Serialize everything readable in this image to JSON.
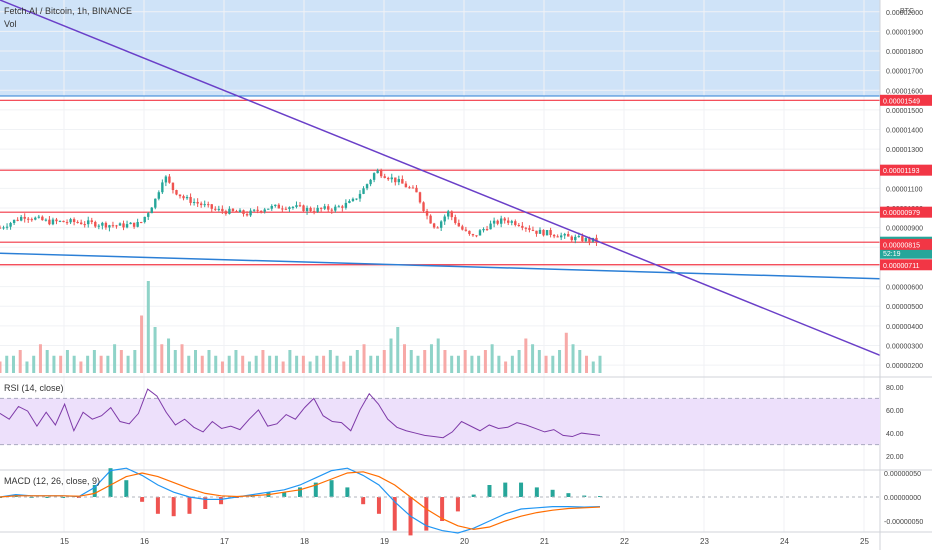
{
  "header": {
    "title": "Fetch.AI / Bitcoin, 1h, BINANCE",
    "vol_label": "Vol",
    "currency": "BTC"
  },
  "price_axis": {
    "ticks": [
      "0.00002000",
      "0.00001900",
      "0.00001800",
      "0.00001700",
      "0.00001600",
      "0.00001500",
      "0.00001400",
      "0.00001300",
      "0.00001200",
      "0.00001100",
      "0.00001000",
      "0.00000900",
      "0.00000800",
      "0.00000700",
      "0.00000600",
      "0.00000500",
      "0.00000400",
      "0.00000300",
      "0.00000200"
    ],
    "tick_values": [
      2e-05,
      1.9e-05,
      1.8e-05,
      1.7e-05,
      1.6e-05,
      1.5e-05,
      1.4e-05,
      1.3e-05,
      1.2e-05,
      1.1e-05,
      1e-05,
      9e-06,
      8e-06,
      7e-06,
      6e-06,
      5e-06,
      4e-06,
      3e-06,
      2e-06
    ]
  },
  "price_tags": [
    {
      "label": "0.00001549",
      "value": 1.549e-05,
      "color": "#f23645"
    },
    {
      "label": "0.00001193",
      "value": 1.193e-05,
      "color": "#f23645"
    },
    {
      "label": "0.00000979",
      "value": 9.79e-06,
      "color": "#f23645"
    },
    {
      "label": "0.00000826",
      "value": 8.26e-06,
      "color": "#26a69a",
      "sub": "52:19"
    },
    {
      "label": "0.00000815",
      "value": 8.15e-06,
      "color": "#f23645"
    },
    {
      "label": "0.00000711",
      "value": 7.11e-06,
      "color": "#f23645"
    }
  ],
  "horizontal_lines": [
    1.549e-05,
    1.193e-05,
    9.79e-06,
    8.26e-06,
    7.11e-06
  ],
  "trendlines": [
    {
      "name": "descending-trendline",
      "color": "#6a3fc8",
      "from": [
        14.2,
        2.06e-05
      ],
      "to": [
        25.2,
        2.5e-06
      ]
    },
    {
      "name": "support-trendline",
      "color": "#2b7fd6",
      "from": [
        14.2,
        7.7e-06
      ],
      "to": [
        25.2,
        6.4e-06
      ]
    }
  ],
  "rsi": {
    "label": "RSI (14, close)",
    "ticks": [
      "80.00",
      "60.00",
      "40.00",
      "20.00"
    ],
    "tick_values": [
      80,
      60,
      40,
      20
    ],
    "band": [
      30,
      70
    ]
  },
  "macd": {
    "label": "MACD (12, 26, close, 9)",
    "ticks": [
      "0.00000050",
      "0.00000000",
      "-0.00000050"
    ],
    "tick_values": [
      5e-07,
      0,
      -5e-07
    ]
  },
  "time_axis": {
    "labels": [
      "15",
      "16",
      "17",
      "18",
      "19",
      "20",
      "21",
      "22",
      "23",
      "24",
      "25"
    ],
    "values": [
      15,
      16,
      17,
      18,
      19,
      20,
      21,
      22,
      23,
      24,
      25
    ]
  },
  "chart_data": {
    "type": "candlestick",
    "title": "Fetch.AI / Bitcoin, 1h, BINANCE",
    "x_range": [
      14.2,
      25.2
    ],
    "ylim": [
      1.8e-06,
      2.06e-05
    ],
    "price_points": [
      [
        14.2,
        9e-06
      ],
      [
        14.5,
        9.6e-06
      ],
      [
        14.8,
        9.3e-06
      ],
      [
        15.1,
        9.3e-06
      ],
      [
        15.4,
        9.2e-06
      ],
      [
        15.7,
        9.1e-06
      ],
      [
        15.95,
        9.2e-06
      ],
      [
        16.05,
        9.8e-06
      ],
      [
        16.15,
        1.05e-05
      ],
      [
        16.25,
        1.17e-05
      ],
      [
        16.35,
        1.1e-05
      ],
      [
        16.5,
        1.05e-05
      ],
      [
        16.7,
        1.02e-05
      ],
      [
        16.9,
        9.9e-06
      ],
      [
        17.1,
        9.8e-06
      ],
      [
        17.3,
        9.7e-06
      ],
      [
        17.5,
        1e-05
      ],
      [
        17.8,
        1.01e-05
      ],
      [
        18.1,
        9.9e-06
      ],
      [
        18.4,
        1e-05
      ],
      [
        18.6,
        1.03e-05
      ],
      [
        18.75,
        1.1e-05
      ],
      [
        18.9,
        1.19e-05
      ],
      [
        19.0,
        1.17e-05
      ],
      [
        19.2,
        1.13e-05
      ],
      [
        19.4,
        1.08e-05
      ],
      [
        19.55,
        9.5e-06
      ],
      [
        19.65,
        9e-06
      ],
      [
        19.8,
        9.8e-06
      ],
      [
        19.95,
        9e-06
      ],
      [
        20.1,
        8.5e-06
      ],
      [
        20.3,
        9.1e-06
      ],
      [
        20.5,
        9.4e-06
      ],
      [
        20.7,
        9.2e-06
      ],
      [
        20.9,
        8.8e-06
      ],
      [
        21.1,
        8.7e-06
      ],
      [
        21.3,
        8.5e-06
      ],
      [
        21.5,
        8.4e-06
      ],
      [
        21.7,
        8.3e-06
      ]
    ],
    "volume": [
      2,
      3,
      3,
      4,
      2,
      3,
      5,
      4,
      3,
      3,
      4,
      3,
      2,
      3,
      4,
      3,
      3,
      5,
      4,
      3,
      4,
      10,
      16,
      8,
      5,
      6,
      4,
      5,
      3,
      4,
      3,
      4,
      3,
      2,
      3,
      4,
      3,
      2,
      3,
      4,
      3,
      3,
      2,
      4,
      3,
      3,
      2,
      3,
      3,
      4,
      3,
      2,
      3,
      4,
      5,
      3,
      3,
      4,
      6,
      8,
      5,
      4,
      3,
      4,
      5,
      6,
      4,
      3,
      3,
      4,
      3,
      3,
      4,
      5,
      3,
      2,
      3,
      4,
      6,
      5,
      4,
      3,
      3,
      4,
      7,
      5,
      4,
      3,
      2,
      3
    ],
    "rsi_series": [
      57,
      52,
      63,
      59,
      46,
      58,
      47,
      65,
      42,
      58,
      52,
      55,
      62,
      50,
      48,
      57,
      78,
      72,
      58,
      47,
      52,
      45,
      41,
      50,
      44,
      46,
      43,
      52,
      60,
      46,
      48,
      56,
      52,
      62,
      70,
      55,
      50,
      49,
      42,
      60,
      74,
      65,
      52,
      45,
      42,
      40,
      38,
      37,
      36,
      41,
      50,
      46,
      42,
      47,
      44,
      45,
      49,
      47,
      44,
      41,
      43,
      38,
      37,
      40,
      39,
      38
    ],
    "macd_line": [
      0,
      0.1,
      0.05,
      0.05,
      0.05,
      0.02,
      0.4,
      1.1,
      1.2,
      0.9,
      0.5,
      0.2,
      0,
      -0.1,
      -0.1,
      0,
      0.1,
      0.2,
      0.3,
      0.5,
      0.8,
      1.1,
      1.2,
      0.9,
      0.5,
      -0.2,
      -0.8,
      -1.2,
      -1.4,
      -1.5,
      -1.3,
      -1.0,
      -0.7,
      -0.5,
      -0.45,
      -0.4,
      -0.4,
      -0.42,
      -0.4
    ],
    "signal_line": [
      0,
      0.05,
      0.05,
      0.05,
      0.05,
      0.03,
      0.15,
      0.5,
      0.85,
      1.0,
      0.85,
      0.6,
      0.35,
      0.15,
      0.05,
      0.02,
      0.05,
      0.1,
      0.2,
      0.3,
      0.5,
      0.75,
      1.0,
      1.05,
      0.85,
      0.5,
      0.0,
      -0.5,
      -0.9,
      -1.2,
      -1.35,
      -1.25,
      -1.0,
      -0.8,
      -0.65,
      -0.55,
      -0.48,
      -0.45,
      -0.42
    ]
  }
}
